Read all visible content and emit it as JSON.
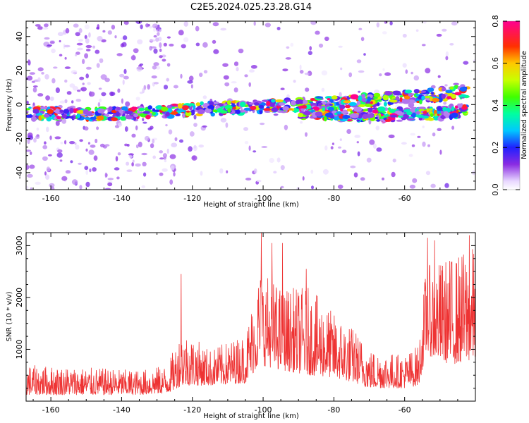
{
  "title": "C2E5.2024.025.23.28.G14",
  "chart_data": [
    {
      "type": "heatmap",
      "xlabel": "Height of straight line (km)",
      "ylabel": "Frequency (Hz)",
      "xlim": [
        -167,
        -40
      ],
      "ylim": [
        -50,
        49
      ],
      "xticks": [
        -160,
        -140,
        -120,
        -100,
        -80,
        -60
      ],
      "yticks": [
        -40,
        -20,
        0,
        20,
        40
      ],
      "colorbar": {
        "label": "Normalized spectral amplitude",
        "range": [
          0,
          0.8
        ],
        "ticks": [
          0.0,
          0.2,
          0.4,
          0.6,
          0.8
        ]
      },
      "ridges": [
        {
          "x": [
            -167,
            -150,
            -130,
            -110,
            -90,
            -75,
            -60,
            -50,
            -42
          ],
          "y": [
            -5,
            -6,
            -4,
            -2,
            0,
            2,
            4,
            6,
            8
          ],
          "peak": 0.72
        },
        {
          "x": [
            -90,
            -75,
            -60,
            -50,
            -42
          ],
          "y": [
            -4,
            -6,
            -6,
            -5,
            -3
          ],
          "peak": 0.8
        }
      ]
    },
    {
      "type": "line",
      "xlabel": "Height of straight line (km)",
      "ylabel": "SNR (10 * v/v)",
      "xlim": [
        -167,
        -40
      ],
      "ylim": [
        0,
        3250
      ],
      "xticks": [
        -160,
        -140,
        -120,
        -100,
        -80,
        -60
      ],
      "yticks": [
        1000,
        2000,
        3000
      ],
      "color": "#ee3333",
      "envelope": [
        {
          "x": -167,
          "low": 120,
          "high": 700
        },
        {
          "x": -150,
          "low": 120,
          "high": 650
        },
        {
          "x": -135,
          "low": 120,
          "high": 600
        },
        {
          "x": -127,
          "low": 150,
          "high": 700
        },
        {
          "x": -123,
          "low": 300,
          "high": 1400
        },
        {
          "x": -115,
          "low": 300,
          "high": 1000
        },
        {
          "x": -105,
          "low": 350,
          "high": 1300
        },
        {
          "x": -101,
          "low": 700,
          "high": 2600
        },
        {
          "x": -95,
          "low": 600,
          "high": 2200
        },
        {
          "x": -87,
          "low": 500,
          "high": 2200
        },
        {
          "x": -80,
          "low": 450,
          "high": 1700
        },
        {
          "x": -74,
          "low": 350,
          "high": 1400
        },
        {
          "x": -70,
          "low": 250,
          "high": 1000
        },
        {
          "x": -60,
          "low": 250,
          "high": 900
        },
        {
          "x": -56,
          "low": 300,
          "high": 1100
        },
        {
          "x": -54,
          "low": 900,
          "high": 2600
        },
        {
          "x": -47,
          "low": 700,
          "high": 2800
        },
        {
          "x": -40,
          "low": 800,
          "high": 3000
        }
      ],
      "spikes": [
        {
          "x": -123.2,
          "y": 2450
        },
        {
          "x": -100.5,
          "y": 3250
        },
        {
          "x": -97.5,
          "y": 3050
        },
        {
          "x": -94.5,
          "y": 3050
        },
        {
          "x": -87.8,
          "y": 2550
        },
        {
          "x": -53.5,
          "y": 3150
        },
        {
          "x": -51.5,
          "y": 3100
        },
        {
          "x": -41.7,
          "y": 3200
        }
      ]
    }
  ]
}
